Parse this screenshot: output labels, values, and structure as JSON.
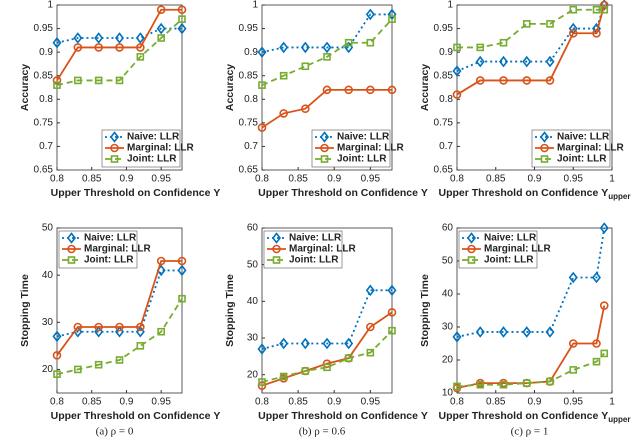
{
  "chart_data": [
    {
      "type": "line",
      "caption": "(a) ρ = 0",
      "xlabel": "Upper Threshold on Confidence Υ",
      "ylabel": "Accuracy",
      "x": [
        0.8,
        0.83,
        0.86,
        0.89,
        0.92,
        0.95,
        0.98
      ],
      "xlim": [
        0.8,
        0.98
      ],
      "xticks": [
        0.8,
        0.85,
        0.9,
        0.95
      ],
      "ylim": [
        0.65,
        1
      ],
      "yticks": [
        0.65,
        0.7,
        0.75,
        0.8,
        0.85,
        0.9,
        0.95,
        1
      ],
      "legend": "lower right",
      "series": [
        {
          "name": "Naive: LLR",
          "color": "#0072bd",
          "marker": "diamond",
          "linestyle": "dotted",
          "values": [
            0.92,
            0.93,
            0.93,
            0.93,
            0.93,
            0.95,
            0.95
          ]
        },
        {
          "name": "Marginal: LLR",
          "color": "#d95319",
          "marker": "circle",
          "linestyle": "solid",
          "values": [
            0.84,
            0.91,
            0.91,
            0.91,
            0.91,
            0.99,
            0.99
          ]
        },
        {
          "name": "Joint: LLR",
          "color": "#77ac30",
          "marker": "square",
          "linestyle": "dashed",
          "values": [
            0.83,
            0.84,
            0.84,
            0.84,
            0.89,
            0.93,
            0.97
          ]
        }
      ]
    },
    {
      "type": "line",
      "caption": "(b) ρ = 0.6",
      "xlabel": "Upper Threshold on Confidence Υ",
      "ylabel": "Accuracy",
      "x": [
        0.8,
        0.83,
        0.86,
        0.89,
        0.92,
        0.95,
        0.98
      ],
      "xlim": [
        0.8,
        0.98
      ],
      "xticks": [
        0.8,
        0.85,
        0.9,
        0.95
      ],
      "ylim": [
        0.65,
        1
      ],
      "yticks": [
        0.65,
        0.7,
        0.75,
        0.8,
        0.85,
        0.9,
        0.95,
        1
      ],
      "legend": "lower right",
      "series": [
        {
          "name": "Naive: LLR",
          "color": "#0072bd",
          "marker": "diamond",
          "linestyle": "dotted",
          "values": [
            0.9,
            0.91,
            0.91,
            0.91,
            0.91,
            0.98,
            0.98
          ]
        },
        {
          "name": "Marginal: LLR",
          "color": "#d95319",
          "marker": "circle",
          "linestyle": "solid",
          "values": [
            0.74,
            0.77,
            0.78,
            0.82,
            0.82,
            0.82,
            0.82
          ]
        },
        {
          "name": "Joint: LLR",
          "color": "#77ac30",
          "marker": "square",
          "linestyle": "dashed",
          "values": [
            0.83,
            0.85,
            0.87,
            0.89,
            0.92,
            0.92,
            0.97
          ]
        }
      ]
    },
    {
      "type": "line",
      "caption": "(c) ρ = 1",
      "xlabel": "Upper Threshold on Confidence Υ",
      "xlabel_sub": "upper",
      "ylabel": "Accuracy",
      "x": [
        0.8,
        0.83,
        0.86,
        0.89,
        0.92,
        0.95,
        0.98,
        0.99
      ],
      "xlim": [
        0.8,
        1
      ],
      "xticks": [
        0.8,
        0.85,
        0.9,
        0.95,
        1
      ],
      "ylim": [
        0.65,
        1
      ],
      "yticks": [
        0.65,
        0.7,
        0.75,
        0.8,
        0.85,
        0.9,
        0.95,
        1
      ],
      "legend": "lower right",
      "series": [
        {
          "name": "Naive: LLR",
          "color": "#0072bd",
          "marker": "diamond",
          "linestyle": "dotted",
          "values": [
            0.86,
            0.88,
            0.88,
            0.88,
            0.88,
            0.95,
            0.95,
            1
          ]
        },
        {
          "name": "Marginal: LLR",
          "color": "#d95319",
          "marker": "circle",
          "linestyle": "solid",
          "values": [
            0.81,
            0.84,
            0.84,
            0.84,
            0.84,
            0.94,
            0.94,
            1
          ]
        },
        {
          "name": "Joint: LLR",
          "color": "#77ac30",
          "marker": "square",
          "linestyle": "dashed",
          "values": [
            0.91,
            0.91,
            0.92,
            0.96,
            0.96,
            0.99,
            0.99,
            0.99
          ]
        }
      ]
    },
    {
      "type": "line",
      "xlabel": "Upper Threshold on Confidence Υ",
      "ylabel": "Stopping Time",
      "x": [
        0.8,
        0.83,
        0.86,
        0.89,
        0.92,
        0.95,
        0.98
      ],
      "xlim": [
        0.8,
        0.98
      ],
      "xticks": [
        0.8,
        0.85,
        0.9,
        0.95
      ],
      "ylim": [
        15,
        50
      ],
      "yticks": [
        20,
        30,
        40,
        50
      ],
      "legend": "upper left",
      "series": [
        {
          "name": "Naive: LLR",
          "color": "#0072bd",
          "marker": "diamond",
          "linestyle": "dotted",
          "values": [
            27,
            28,
            28,
            28,
            28,
            41,
            41
          ]
        },
        {
          "name": "Marginal: LLR",
          "color": "#d95319",
          "marker": "circle",
          "linestyle": "solid",
          "values": [
            23,
            29,
            29,
            29,
            29,
            43,
            43
          ]
        },
        {
          "name": "Joint: LLR",
          "color": "#77ac30",
          "marker": "square",
          "linestyle": "dashed",
          "values": [
            19,
            20,
            21,
            22,
            25,
            28,
            35
          ]
        }
      ]
    },
    {
      "type": "line",
      "xlabel": "Upper Threshold on Confidence Υ",
      "ylabel": "Stopping Time",
      "x": [
        0.8,
        0.83,
        0.86,
        0.89,
        0.92,
        0.95,
        0.98
      ],
      "xlim": [
        0.8,
        0.98
      ],
      "xticks": [
        0.8,
        0.85,
        0.9,
        0.95
      ],
      "ylim": [
        15,
        60
      ],
      "yticks": [
        20,
        30,
        40,
        50,
        60
      ],
      "legend": "upper left",
      "series": [
        {
          "name": "Naive: LLR",
          "color": "#0072bd",
          "marker": "diamond",
          "linestyle": "dotted",
          "values": [
            27,
            28.5,
            28.5,
            28.5,
            28.5,
            43,
            43
          ]
        },
        {
          "name": "Marginal: LLR",
          "color": "#d95319",
          "marker": "circle",
          "linestyle": "solid",
          "values": [
            17,
            19,
            21,
            23,
            24.5,
            33,
            37
          ]
        },
        {
          "name": "Joint: LLR",
          "color": "#77ac30",
          "marker": "square",
          "linestyle": "dashed",
          "values": [
            18,
            19.5,
            21,
            22,
            24.5,
            26,
            32
          ]
        }
      ]
    },
    {
      "type": "line",
      "xlabel": "Upper Threshold on Confidence Υ",
      "xlabel_sub": "upper",
      "ylabel": "Stopping Time",
      "x": [
        0.8,
        0.83,
        0.86,
        0.89,
        0.92,
        0.95,
        0.98,
        0.99
      ],
      "xlim": [
        0.8,
        1
      ],
      "xticks": [
        0.8,
        0.85,
        0.9,
        0.95,
        1
      ],
      "ylim": [
        10,
        60
      ],
      "yticks": [
        10,
        20,
        30,
        40,
        50,
        60
      ],
      "legend": "upper left",
      "series": [
        {
          "name": "Naive: LLR",
          "color": "#0072bd",
          "marker": "diamond",
          "linestyle": "dotted",
          "values": [
            27,
            28.5,
            28.5,
            28.5,
            28.5,
            45,
            45,
            60
          ]
        },
        {
          "name": "Marginal: LLR",
          "color": "#d95319",
          "marker": "circle",
          "linestyle": "solid",
          "values": [
            11.5,
            13,
            13,
            13,
            13.5,
            25,
            25,
            36.5
          ]
        },
        {
          "name": "Joint: LLR",
          "color": "#77ac30",
          "marker": "square",
          "linestyle": "dashed",
          "values": [
            12,
            12.5,
            12.5,
            13,
            13.5,
            17,
            19.5,
            22
          ]
        }
      ]
    }
  ]
}
